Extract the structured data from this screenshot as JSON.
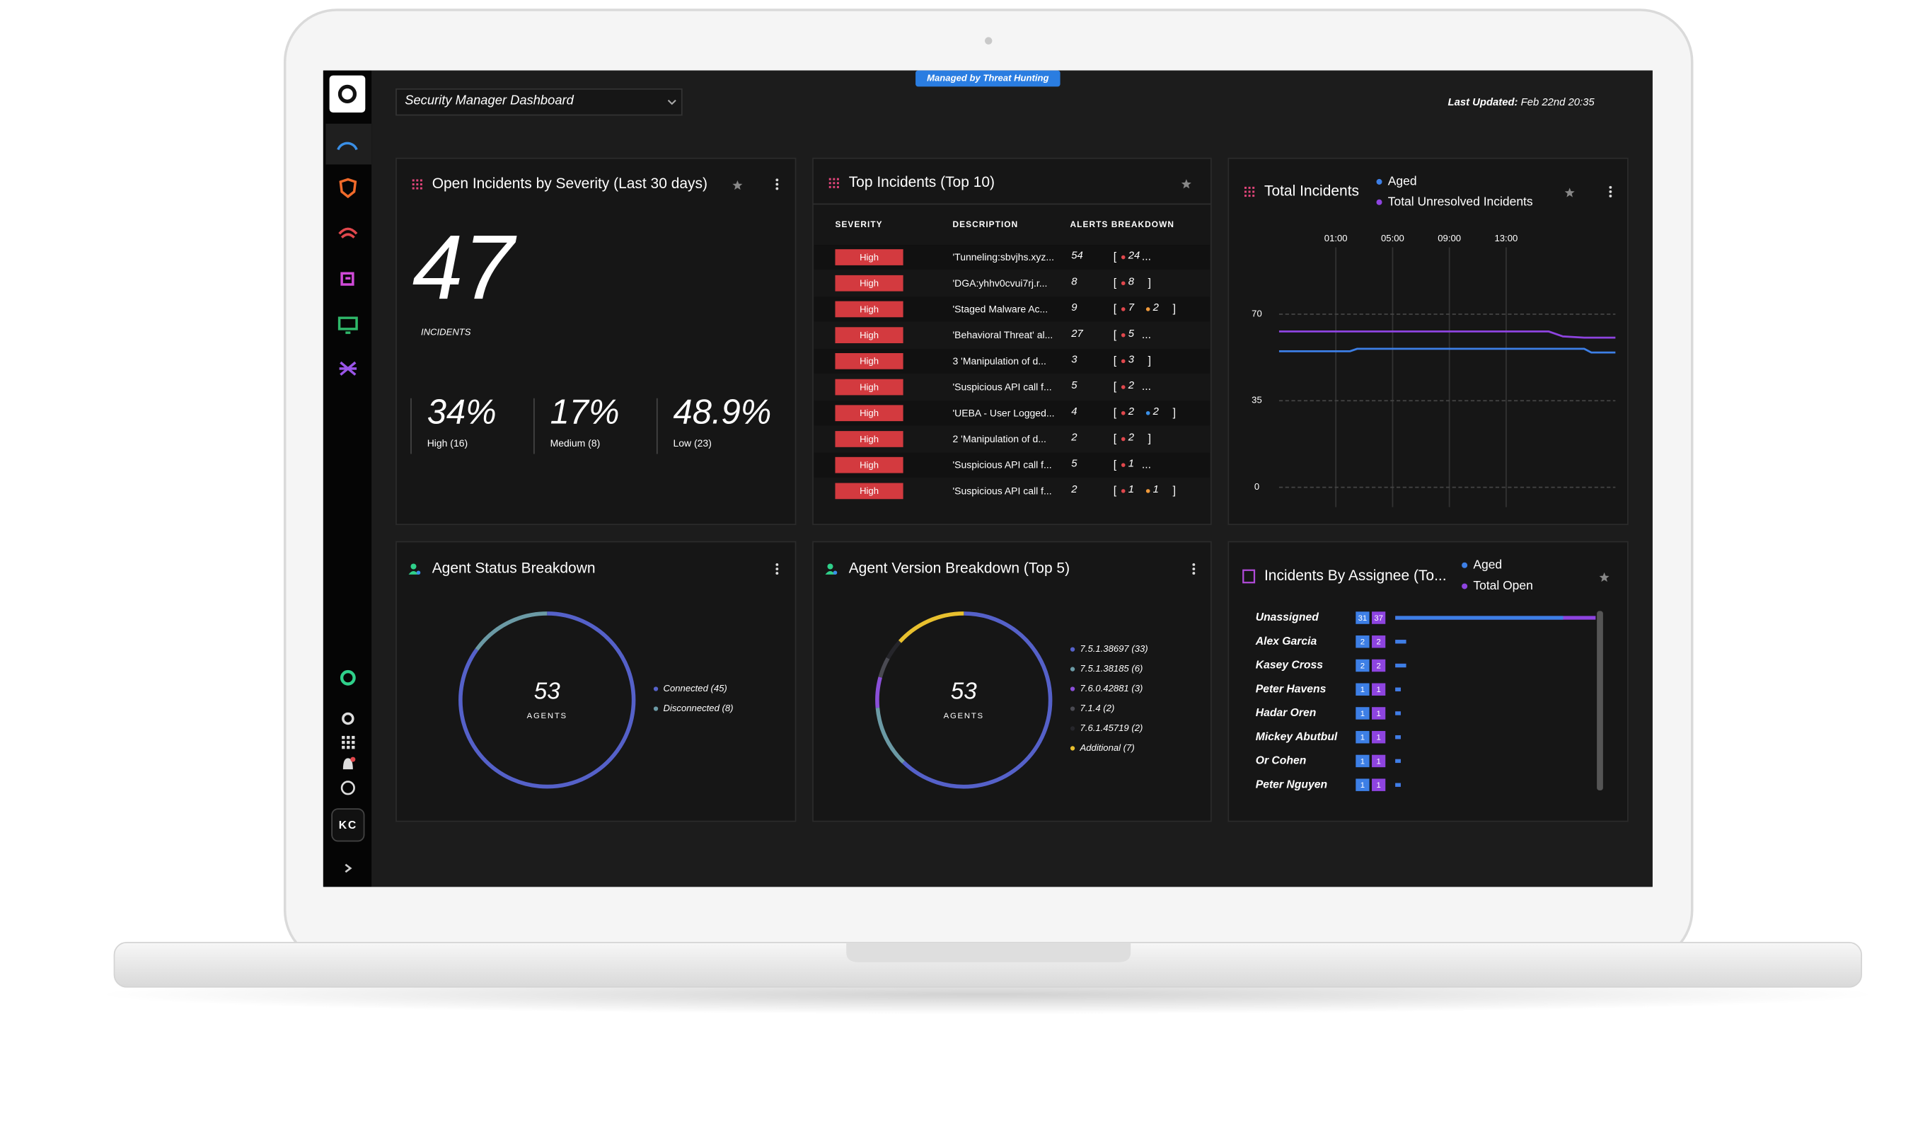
{
  "header": {
    "dashboard": "Security Manager Dashboard",
    "badge": "Managed by Threat Hunting",
    "last_updated_label": "Last Updated:",
    "last_updated": "Feb 22nd 20:35"
  },
  "sidebar": {
    "user": "KC"
  },
  "severity": {
    "title": "Open Incidents by Severity (Last 30 days)",
    "total": 47,
    "total_label": "INCIDENTS",
    "items": [
      {
        "percent": "34%",
        "label": "High (16)",
        "color": "#e0474c"
      },
      {
        "percent": "17%",
        "label": "Medium (8)",
        "color": "#f0993a"
      },
      {
        "percent": "48.9%",
        "label": "Low (23)",
        "color": "#3a8fe6"
      }
    ]
  },
  "top_incidents": {
    "title": "Top Incidents (Top 10)",
    "columns": [
      "SEVERITY",
      "DESCRIPTION",
      "ALERTS BREAKDOWN"
    ],
    "open": "[",
    "close": "]",
    "more": "...",
    "rows": [
      {
        "severity": "High",
        "description": "'Tunneling:sbvjhs.xyz...",
        "alerts": 54,
        "breakdown": [
          {
            "value": 24,
            "color": "#e0474c"
          }
        ],
        "truncated": true
      },
      {
        "severity": "High",
        "description": "'DGA:yhhv0cvui7rj.r...",
        "alerts": 8,
        "breakdown": [
          {
            "value": 8,
            "color": "#e0474c"
          }
        ],
        "truncated": false
      },
      {
        "severity": "High",
        "description": "'Staged Malware Ac...",
        "alerts": 9,
        "breakdown": [
          {
            "value": 7,
            "color": "#e0474c"
          },
          {
            "value": 2,
            "color": "#f0993a"
          }
        ],
        "truncated": false
      },
      {
        "severity": "High",
        "description": "'Behavioral Threat' al...",
        "alerts": 27,
        "breakdown": [
          {
            "value": 5,
            "color": "#e0474c"
          }
        ],
        "truncated": true
      },
      {
        "severity": "High",
        "description": "3 'Manipulation of d...",
        "alerts": 3,
        "breakdown": [
          {
            "value": 3,
            "color": "#e0474c"
          }
        ],
        "truncated": false
      },
      {
        "severity": "High",
        "description": "'Suspicious API call f...",
        "alerts": 5,
        "breakdown": [
          {
            "value": 2,
            "color": "#e0474c"
          }
        ],
        "truncated": true
      },
      {
        "severity": "High",
        "description": "'UEBA - User Logged...",
        "alerts": 4,
        "breakdown": [
          {
            "value": 2,
            "color": "#e0474c"
          },
          {
            "value": 2,
            "color": "#3a8fe6"
          }
        ],
        "truncated": false
      },
      {
        "severity": "High",
        "description": "2 'Manipulation of d...",
        "alerts": 2,
        "breakdown": [
          {
            "value": 2,
            "color": "#e0474c"
          }
        ],
        "truncated": false
      },
      {
        "severity": "High",
        "description": "'Suspicious API call f...",
        "alerts": 5,
        "breakdown": [
          {
            "value": 1,
            "color": "#e0474c"
          }
        ],
        "truncated": true
      },
      {
        "severity": "High",
        "description": "'Suspicious API call f...",
        "alerts": 2,
        "breakdown": [
          {
            "value": 1,
            "color": "#e0474c"
          },
          {
            "value": 1,
            "color": "#f0993a"
          }
        ],
        "truncated": false
      }
    ]
  },
  "total_incidents": {
    "type": "line",
    "title": "Total Incidents",
    "x": [
      -3,
      2,
      2.5,
      15,
      16,
      17,
      18.5,
      19,
      20.7
    ],
    "xlim": [
      -3,
      20.7
    ],
    "xticks": [
      {
        "value": 1,
        "label": "01:00"
      },
      {
        "value": 5,
        "label": "05:00"
      },
      {
        "value": 9,
        "label": "09:00"
      },
      {
        "value": 13,
        "label": "13:00"
      }
    ],
    "ylim": [
      0,
      100
    ],
    "yticks": [
      0,
      35,
      70
    ],
    "grid": true,
    "series": [
      {
        "name": "Aged",
        "color": "#3d7fe6",
        "values": [
          55,
          55,
          56,
          56,
          56,
          56,
          56,
          54.5,
          54.5
        ]
      },
      {
        "name": "Total Unresolved Incidents",
        "color": "#8e44e0",
        "values": [
          63,
          63,
          63,
          63,
          63,
          61,
          60.5,
          60.5,
          60.5
        ]
      }
    ]
  },
  "agent_status": {
    "type": "donut",
    "title": "Agent Status Breakdown",
    "total": 53,
    "total_label": "AGENTS",
    "slices": [
      {
        "label": "Connected (45)",
        "value": 45,
        "color": "#5561c9"
      },
      {
        "label": "Disconnected (8)",
        "value": 8,
        "color": "#6b9aa5"
      }
    ]
  },
  "agent_version": {
    "type": "donut",
    "title": "Agent Version Breakdown (Top 5)",
    "total": 53,
    "total_label": "AGENTS",
    "slices": [
      {
        "label": "7.5.1.38697 (33)",
        "value": 33,
        "color": "#5561c9"
      },
      {
        "label": "7.5.1.38185 (6)",
        "value": 6,
        "color": "#6b9aa5"
      },
      {
        "label": "7.6.0.42881 (3)",
        "value": 3,
        "color": "#8a4fd8"
      },
      {
        "label": "7.1.4 (2)",
        "value": 2,
        "color": "#4a4a52"
      },
      {
        "label": "7.6.1.45719 (2)",
        "value": 2,
        "color": "#26262b"
      },
      {
        "label": "Additional (7)",
        "value": 7,
        "color": "#e8c02e"
      }
    ]
  },
  "assignee": {
    "type": "bar",
    "title": "Incidents By Assignee (To...",
    "series": [
      {
        "name": "Aged",
        "color": "#3d7fe6"
      },
      {
        "name": "Total Open",
        "color": "#8e44e0"
      }
    ],
    "rows": [
      {
        "name": "Unassigned",
        "aged": 31,
        "open": 37
      },
      {
        "name": "Alex Garcia",
        "aged": 2,
        "open": 2
      },
      {
        "name": "Kasey Cross",
        "aged": 2,
        "open": 2
      },
      {
        "name": "Peter Havens",
        "aged": 1,
        "open": 1
      },
      {
        "name": "Hadar Oren",
        "aged": 1,
        "open": 1
      },
      {
        "name": "Mickey Abutbul",
        "aged": 1,
        "open": 1
      },
      {
        "name": "Or Cohen",
        "aged": 1,
        "open": 1
      },
      {
        "name": "Peter Nguyen",
        "aged": 1,
        "open": 1
      }
    ]
  }
}
